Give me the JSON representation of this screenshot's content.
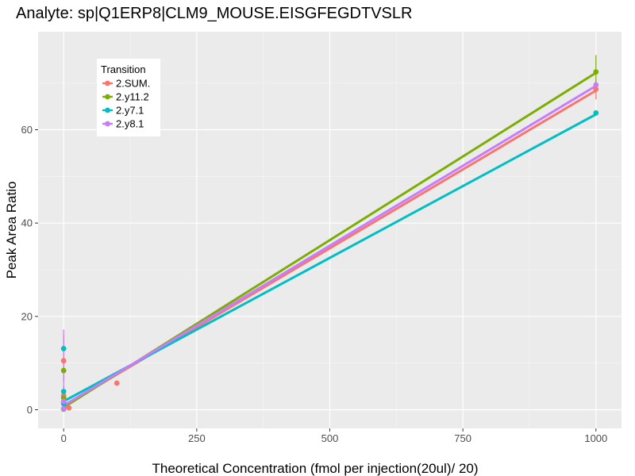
{
  "chart_data": {
    "type": "scatter",
    "title": "Analyte: sp|Q1ERP8|CLM9_MOUSE.EISGFEGDTVSLR",
    "xlabel": "Theoretical Concentration (fmol per injection(20ul)/ 20)",
    "ylabel": "Peak Area Ratio",
    "xlim": [
      -48,
      1048
    ],
    "ylim": [
      -4,
      81
    ],
    "x_ticks": [
      0,
      250,
      500,
      750,
      1000
    ],
    "x_tick_labels": [
      "0",
      "250",
      "500",
      "750",
      "1000"
    ],
    "y_ticks": [
      0,
      20,
      40,
      60
    ],
    "y_tick_labels": [
      "0",
      "20",
      "40",
      "60"
    ],
    "grid": true,
    "legend": {
      "title": "Transition",
      "position": "top-left"
    },
    "series": [
      {
        "name": "2.SUM.",
        "color": "#F8766D",
        "fit": {
          "x0": 0,
          "y0": 0.8,
          "x1": 1000,
          "y1": 68.4
        },
        "points": [
          [
            0,
            10.5
          ],
          [
            0,
            3.0
          ],
          [
            0,
            1.6
          ],
          [
            0,
            0.2
          ],
          [
            10,
            0.4
          ],
          [
            100,
            5.7
          ],
          [
            1000,
            68.7
          ]
        ],
        "error_bars": [
          {
            "x": 0,
            "low": 6.0,
            "high": 16.0
          },
          {
            "x": 1000,
            "low": 66.5,
            "high": 70.5
          }
        ]
      },
      {
        "name": "2.y11.2",
        "color": "#7CAE00",
        "fit": {
          "x0": 0,
          "y0": 0.5,
          "x1": 1000,
          "y1": 72.2
        },
        "points": [
          [
            0,
            8.4
          ],
          [
            0,
            2.5
          ],
          [
            0,
            0.1
          ],
          [
            1000,
            72.4
          ]
        ],
        "error_bars": [
          {
            "x": 1000,
            "low": 69.0,
            "high": 76.0
          }
        ]
      },
      {
        "name": "2.y7.1",
        "color": "#00BFC4",
        "fit": {
          "x0": 0,
          "y0": 1.8,
          "x1": 1000,
          "y1": 63.3
        },
        "points": [
          [
            0,
            13.1
          ],
          [
            0,
            3.9
          ],
          [
            0,
            1.3
          ],
          [
            0,
            0.2
          ],
          [
            1000,
            63.6
          ]
        ],
        "error_bars": [
          {
            "x": 0,
            "low": 2.5,
            "high": 5.0
          }
        ]
      },
      {
        "name": "2.y8.1",
        "color": "#C77CFF",
        "fit": {
          "x0": 0,
          "y0": 0.9,
          "x1": 1000,
          "y1": 69.4
        },
        "points": [
          [
            0,
            1.8
          ],
          [
            0,
            0.2
          ],
          [
            1000,
            69.6
          ]
        ],
        "error_bars": [
          {
            "x": 0,
            "low": 0,
            "high": 17.2
          }
        ]
      }
    ]
  }
}
